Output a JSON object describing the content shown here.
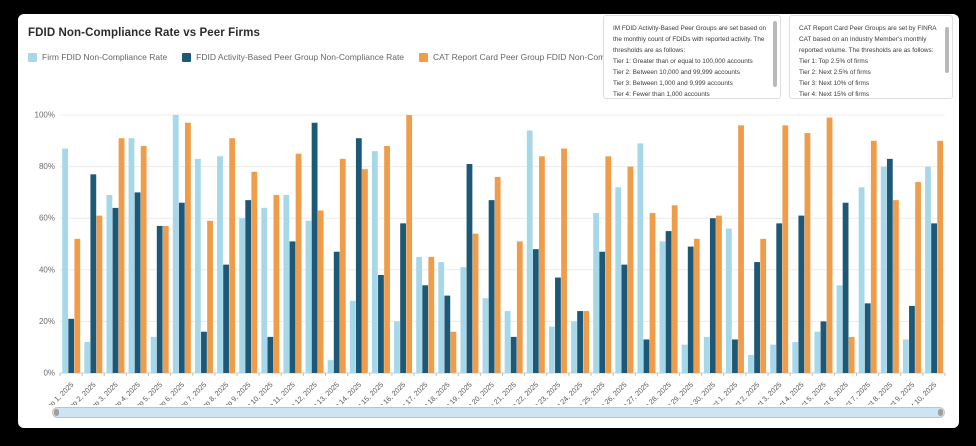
{
  "page": {
    "title": "FDID Non-Compliance Rate vs Peer Firms"
  },
  "info_boxes": [
    {
      "intro": "IM FDID Activity-Based Peer Groups are set based on the monthly count of FDIDs with reported activity. The thresholds are as follows:",
      "tiers": [
        "Tier 1: Greater than or equal to 100,000 accounts",
        "Tier 2: Between 10,000 and 99,999 accounts",
        "Tier 3: Between 1,000 and 9,999 accounts",
        "Tier 4: Fewer than 1,000 accounts"
      ]
    },
    {
      "intro": "CAT Report Card Peer Groups are set by FINRA CAT based on an Industry Member's monthly reported volume. The thresholds are as follows:",
      "tiers": [
        "Tier 1: Top 2.5% of firms",
        "Tier 2: Next 2.5% of firms",
        "Tier 3: Next 10% of firms",
        "Tier 4: Next 15% of firms"
      ]
    }
  ],
  "chart_data": {
    "type": "bar",
    "title": "FDID Non-Compliance Rate vs Peer Firms",
    "xlabel": "",
    "ylabel": "",
    "ylim": [
      0,
      100
    ],
    "yticks": [
      0,
      20,
      40,
      60,
      80,
      100
    ],
    "ytick_suffix": "%",
    "grid": true,
    "legend_position": "top-left",
    "categories": [
      "Sep 1, 2025",
      "Sep 2, 2025",
      "Sep 3, 2025",
      "Sep 4, 2025",
      "Sep 5, 2025",
      "Sep 6, 2025",
      "Sep 7, 2025",
      "Sep 8, 2025",
      "Sep 9, 2025",
      "Sep 10, 2025",
      "Sep 11, 2025",
      "Sep 12, 2025",
      "Sep 13, 2025",
      "Sep 14, 2025",
      "Sep 15, 2025",
      "Sep 16, 2025",
      "Sep 17, 2025",
      "Sep 18, 2025",
      "Sep 19, 2025",
      "Sep 20, 2025",
      "Sep 21, 2025",
      "Sep 22, 2025",
      "Sep 23, 2025",
      "Sep 24, 2025",
      "Sep 25, 2025",
      "Sep 26, 2025",
      "Sep 27, 2025",
      "Sep 28, 2025",
      "Sep 29, 2025",
      "Sep 30, 2025",
      "Oct 1, 2025",
      "Oct 2, 2025",
      "Oct 3, 2025",
      "Oct 4, 2025",
      "Oct 5, 2025",
      "Oct 6, 2025",
      "Oct 7, 2025",
      "Oct 8, 2025",
      "Oct 9, 2025",
      "Oct 10, 2025"
    ],
    "series": [
      {
        "name": "Firm FDID Non-Compliance Rate",
        "color": "#a7d8e9",
        "values": [
          87,
          12,
          69,
          91,
          14,
          100,
          83,
          84,
          60,
          64,
          69,
          59,
          5,
          28,
          86,
          20,
          45,
          43,
          41,
          29,
          24,
          94,
          18,
          20,
          62,
          72,
          89,
          51,
          11,
          14,
          56,
          7,
          11,
          12,
          16,
          34,
          72,
          80,
          13,
          80
        ]
      },
      {
        "name": "FDID Activity-Based Peer Group Non-Compliance Rate",
        "color": "#1e5877",
        "values": [
          21,
          77,
          64,
          70,
          57,
          66,
          16,
          42,
          67,
          14,
          51,
          97,
          47,
          91,
          38,
          58,
          34,
          30,
          81,
          67,
          14,
          48,
          37,
          24,
          47,
          42,
          13,
          55,
          49,
          60,
          13,
          43,
          58,
          61,
          20,
          66,
          27,
          83,
          26,
          58
        ]
      },
      {
        "name": "CAT Report Card Peer Group FDID Non-Compliance Rate",
        "color": "#f09d4b",
        "values": [
          52,
          61,
          91,
          88,
          57,
          97,
          59,
          91,
          78,
          69,
          85,
          63,
          83,
          79,
          88,
          100,
          45,
          16,
          54,
          76,
          51,
          84,
          87,
          24,
          84,
          80,
          62,
          65,
          52,
          61,
          96,
          52,
          96,
          93,
          99,
          14,
          90,
          67,
          74,
          90
        ]
      }
    ],
    "colors": {
      "grid": "#ececec",
      "axis": "#c9ced4",
      "tick": "#c0c0c0",
      "ytick_label": "#6b6b6b",
      "xtick_label": "#585858"
    }
  }
}
